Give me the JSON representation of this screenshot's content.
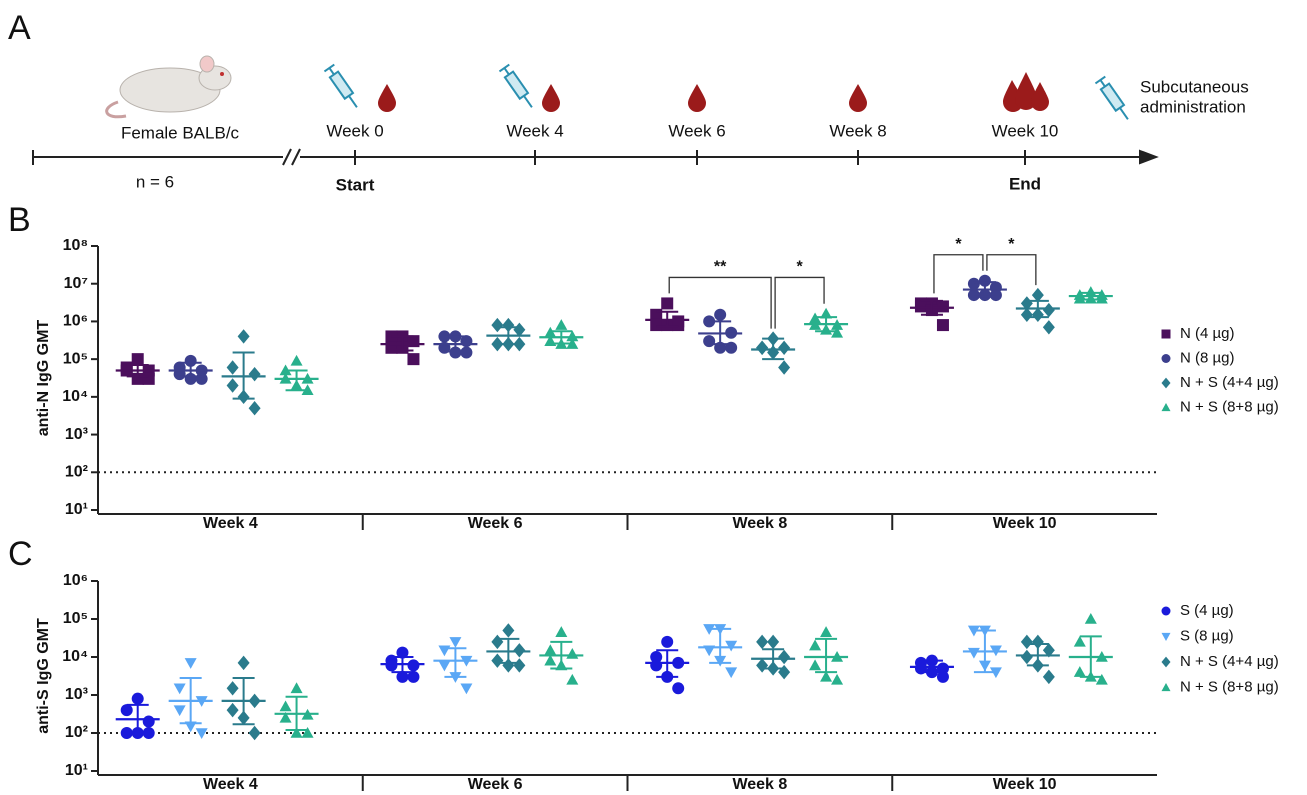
{
  "panel_labels": [
    "A",
    "B",
    "C"
  ],
  "timeline": {
    "subject": "Female BALB/c",
    "n": "n = 6",
    "weeks": [
      "Week 0",
      "Week 4",
      "Week 6",
      "Week 8",
      "Week 10"
    ],
    "start": "Start",
    "end": "End",
    "legend": [
      "Subcutaneous",
      "administration"
    ]
  },
  "chart_data": [
    {
      "type": "dot",
      "y_label": "anti-N IgG GMT",
      "log_scale": true,
      "legend": "right",
      "categories": [
        "Week 4",
        "Week 6",
        "Week 8",
        "Week 10"
      ],
      "ylim": [
        10,
        100000000
      ],
      "yticks": [
        {
          "value": 10,
          "label": "10¹"
        },
        {
          "value": 100,
          "label": "10²"
        },
        {
          "value": 1000,
          "label": "10³"
        },
        {
          "value": 10000,
          "label": "10⁴"
        },
        {
          "value": 100000,
          "label": "10⁵"
        },
        {
          "value": 1000000,
          "label": "10⁶"
        },
        {
          "value": 10000000,
          "label": "10⁷"
        },
        {
          "value": 100000000,
          "label": "10⁸"
        }
      ],
      "threshold": 100,
      "series": [
        {
          "name": "N (4 µg)",
          "color": "#4b0f5c",
          "marker": "square",
          "values": [
            50000,
            250000,
            1100000,
            2300000
          ],
          "error_low": [
            35000,
            170000,
            750000,
            1500000
          ],
          "error_high": [
            70000,
            400000,
            1800000,
            3500000
          ],
          "points": [
            [
              100000,
              60000,
              50000,
              50000,
              30000,
              30000
            ],
            [
              400000,
              400000,
              300000,
              200000,
              200000,
              100000
            ],
            [
              3000000,
              1500000,
              1000000,
              800000,
              800000,
              800000
            ],
            [
              3000000,
              3000000,
              2500000,
              2500000,
              2000000,
              800000
            ]
          ]
        },
        {
          "name": "N (8 µg)",
          "color": "#3c3f8d",
          "marker": "circle",
          "values": [
            50000,
            250000,
            480000,
            7000000
          ],
          "error_low": [
            35000,
            160000,
            250000,
            4500000
          ],
          "error_high": [
            80000,
            400000,
            1000000,
            11000000
          ],
          "points": [
            [
              90000,
              60000,
              50000,
              40000,
              30000,
              30000
            ],
            [
              400000,
              400000,
              300000,
              200000,
              150000,
              150000
            ],
            [
              1500000,
              1000000,
              500000,
              300000,
              200000,
              200000
            ],
            [
              12000000,
              10000000,
              8000000,
              5000000,
              5000000,
              5000000
            ]
          ]
        },
        {
          "name": "N + S (4+4 µg)",
          "color": "#2a7b8c",
          "marker": "diamond",
          "values": [
            35000,
            420000,
            180000,
            2200000
          ],
          "error_low": [
            9000,
            250000,
            100000,
            1300000
          ],
          "error_high": [
            150000,
            700000,
            350000,
            3500000
          ],
          "points": [
            [
              400000,
              60000,
              40000,
              20000,
              10000,
              5000
            ],
            [
              800000,
              800000,
              600000,
              250000,
              250000,
              250000
            ],
            [
              350000,
              200000,
              200000,
              200000,
              150000,
              60000
            ],
            [
              5000000,
              3000000,
              2000000,
              1500000,
              1500000,
              700000
            ]
          ]
        },
        {
          "name": "N + S (8+8 µg)",
          "color": "#28b08c",
          "marker": "triangle",
          "values": [
            30000,
            380000,
            850000,
            4700000
          ],
          "error_low": [
            15000,
            260000,
            550000,
            3800000
          ],
          "error_high": [
            50000,
            550000,
            1300000,
            5700000
          ],
          "points": [
            [
              90000,
              50000,
              30000,
              30000,
              20000,
              15000
            ],
            [
              800000,
              500000,
              400000,
              300000,
              250000,
              250000
            ],
            [
              1600000,
              1200000,
              800000,
              800000,
              600000,
              500000
            ],
            [
              6000000,
              5000000,
              5000000,
              4000000,
              4000000,
              4000000
            ]
          ]
        }
      ],
      "annotations": [
        {
          "category": 2,
          "from_series": 0,
          "to_series": 2,
          "label": "**"
        },
        {
          "category": 2,
          "from_series": 2,
          "to_series": 3,
          "label": "*"
        },
        {
          "category": 3,
          "from_series": 0,
          "to_series": 1,
          "label": "*"
        },
        {
          "category": 3,
          "from_series": 1,
          "to_series": 2,
          "label": "*"
        }
      ]
    },
    {
      "type": "dot",
      "y_label": "anti-S IgG GMT",
      "log_scale": true,
      "legend": "right",
      "categories": [
        "Week 4",
        "Week 6",
        "Week 8",
        "Week 10"
      ],
      "ylim": [
        10,
        1000000
      ],
      "yticks": [
        {
          "value": 10,
          "label": "10¹"
        },
        {
          "value": 100,
          "label": "10²"
        },
        {
          "value": 1000,
          "label": "10³"
        },
        {
          "value": 10000,
          "label": "10⁴"
        },
        {
          "value": 100000,
          "label": "10⁵"
        },
        {
          "value": 1000000,
          "label": "10⁶"
        }
      ],
      "threshold": 100,
      "series": [
        {
          "name": "S (4 µg)",
          "color": "#1a1adb",
          "marker": "circle",
          "values": [
            230,
            6500,
            7000,
            5500
          ],
          "error_low": [
            100,
            4000,
            3000,
            4000
          ],
          "error_high": [
            550,
            10000,
            15000,
            8000
          ],
          "points": [
            [
              800,
              400,
              200,
              100,
              100,
              100
            ],
            [
              13000,
              8000,
              6000,
              6000,
              3000,
              3000
            ],
            [
              25000,
              10000,
              7000,
              6000,
              3000,
              1500
            ],
            [
              8000,
              7000,
              5000,
              5000,
              4000,
              3000
            ]
          ]
        },
        {
          "name": "S (8 µg)",
          "color": "#5aa7f5",
          "marker": "triangle-down",
          "values": [
            700,
            8000,
            18000,
            14000
          ],
          "error_low": [
            180,
            3000,
            7000,
            4000
          ],
          "error_high": [
            2800,
            17000,
            55000,
            50000
          ],
          "points": [
            [
              7000,
              1500,
              700,
              400,
              150,
              100
            ],
            [
              25000,
              15000,
              8000,
              6000,
              3000,
              1500
            ],
            [
              55000,
              55000,
              20000,
              15000,
              8000,
              4000
            ],
            [
              50000,
              50000,
              15000,
              13000,
              6000,
              4000
            ]
          ]
        },
        {
          "name": "N + S (4+4 µg)",
          "color": "#2a7b8c",
          "marker": "diamond",
          "values": [
            700,
            14000,
            9000,
            11000
          ],
          "error_low": [
            170,
            7000,
            5000,
            6000
          ],
          "error_high": [
            2800,
            30000,
            16000,
            22000
          ],
          "points": [
            [
              7000,
              1500,
              700,
              400,
              250,
              100
            ],
            [
              50000,
              25000,
              15000,
              8000,
              6000,
              6000
            ],
            [
              25000,
              25000,
              10000,
              6000,
              5000,
              4000
            ],
            [
              25000,
              25000,
              15000,
              10000,
              6000,
              3000
            ]
          ]
        },
        {
          "name": "N + S (8+8 µg)",
          "color": "#28b08c",
          "marker": "triangle",
          "values": [
            320,
            11000,
            10000,
            10000
          ],
          "error_low": [
            120,
            5000,
            4000,
            3000
          ],
          "error_high": [
            900,
            25000,
            30000,
            35000
          ],
          "points": [
            [
              1500,
              500,
              300,
              250,
              100,
              100
            ],
            [
              45000,
              15000,
              12000,
              8000,
              6000,
              2500
            ],
            [
              45000,
              20000,
              10000,
              6000,
              3000,
              2500
            ],
            [
              100000,
              25000,
              10000,
              4000,
              3000,
              2500
            ]
          ]
        }
      ],
      "annotations": []
    }
  ]
}
